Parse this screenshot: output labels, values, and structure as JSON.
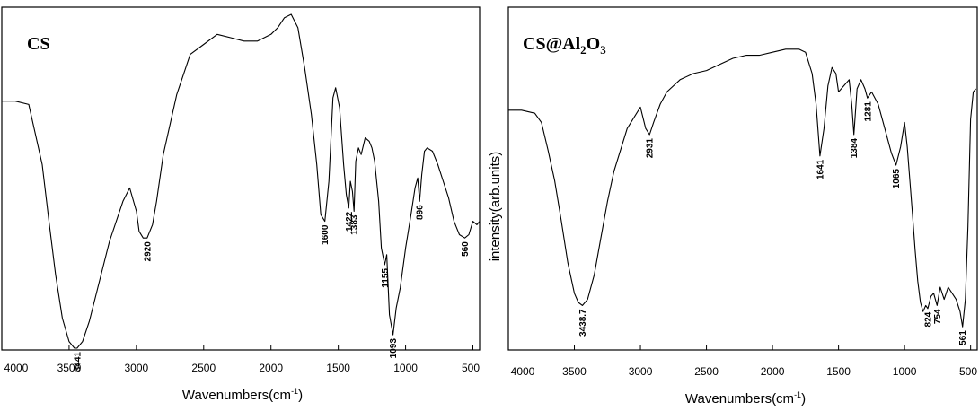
{
  "chart_data": [
    {
      "type": "line",
      "title": "CS",
      "xlabel": "Wavenumbers(cm",
      "xlabel_sup": "-1",
      "xlabel_end": ")",
      "ylabel": "",
      "xlim": [
        4000,
        450
      ],
      "ylim": [
        0,
        100
      ],
      "x_ticks": [
        4000,
        3500,
        3000,
        2500,
        2000,
        1500,
        1000,
        500
      ],
      "grid": false,
      "series": [
        {
          "x": [
            4000,
            3900,
            3800,
            3700,
            3650,
            3600,
            3550,
            3500,
            3460,
            3441,
            3400,
            3350,
            3300,
            3200,
            3100,
            3050,
            3000,
            2980,
            2950,
            2920,
            2880,
            2850,
            2800,
            2700,
            2600,
            2500,
            2400,
            2300,
            2200,
            2100,
            2000,
            1950,
            1900,
            1850,
            1800,
            1750,
            1700,
            1660,
            1630,
            1600,
            1570,
            1540,
            1520,
            1490,
            1460,
            1440,
            1422,
            1410,
            1395,
            1383,
            1370,
            1350,
            1330,
            1300,
            1270,
            1250,
            1230,
            1200,
            1180,
            1160,
            1155,
            1140,
            1120,
            1093,
            1070,
            1040,
            1000,
            960,
            930,
            910,
            896,
            880,
            860,
            840,
            800,
            760,
            720,
            680,
            640,
            600,
            560,
            530,
            500,
            470,
            450
          ],
          "y": [
            74,
            74,
            73,
            55,
            38,
            22,
            9,
            2,
            0,
            0,
            2,
            8,
            16,
            32,
            44,
            48,
            41,
            35,
            33,
            33,
            37,
            44,
            58,
            76,
            88,
            91,
            94,
            93,
            92,
            92,
            94,
            96,
            99,
            100,
            96,
            84,
            70,
            55,
            40,
            38,
            50,
            75,
            78,
            72,
            55,
            46,
            42,
            50,
            47,
            41,
            56,
            60,
            58,
            63,
            62,
            60,
            56,
            44,
            30,
            26,
            25,
            28,
            10,
            4,
            12,
            18,
            30,
            40,
            48,
            51,
            44,
            52,
            59,
            60,
            59,
            55,
            50,
            45,
            38,
            34,
            33,
            34,
            38,
            37,
            38
          ]
        }
      ],
      "peak_labels": [
        {
          "x": 3441,
          "text": "3441"
        },
        {
          "x": 2920,
          "text": "2920"
        },
        {
          "x": 1600,
          "text": "1600"
        },
        {
          "x": 1422,
          "text": "1422"
        },
        {
          "x": 1383,
          "text": "1383"
        },
        {
          "x": 1155,
          "text": "1155"
        },
        {
          "x": 1093,
          "text": "1093"
        },
        {
          "x": 896,
          "text": "896"
        },
        {
          "x": 560,
          "text": "560"
        }
      ]
    },
    {
      "type": "line",
      "title": "CS@Al",
      "title_sub1": "2",
      "title_mid": "O",
      "title_sub2": "3",
      "xlabel": "Wavenumbers(cm",
      "xlabel_sup": "-1",
      "xlabel_end": ")",
      "ylabel": "intensity(arb.units)",
      "xlim": [
        4000,
        450
      ],
      "ylim": [
        0,
        100
      ],
      "x_ticks": [
        4000,
        3500,
        3000,
        2500,
        2000,
        1500,
        1000,
        500
      ],
      "grid": false,
      "series": [
        {
          "x": [
            4000,
            3900,
            3800,
            3750,
            3700,
            3650,
            3600,
            3550,
            3500,
            3470,
            3438.7,
            3400,
            3350,
            3300,
            3250,
            3200,
            3100,
            3000,
            2960,
            2931,
            2900,
            2850,
            2800,
            2700,
            2600,
            2500,
            2400,
            2300,
            2200,
            2100,
            2000,
            1900,
            1800,
            1750,
            1700,
            1670,
            1641,
            1610,
            1580,
            1550,
            1520,
            1500,
            1460,
            1420,
            1400,
            1384,
            1360,
            1330,
            1300,
            1281,
            1250,
            1200,
            1150,
            1100,
            1065,
            1030,
            1000,
            980,
            960,
            940,
            920,
            900,
            880,
            860,
            840,
            824,
            800,
            780,
            754,
            730,
            700,
            670,
            640,
            610,
            580,
            561,
            540,
            520,
            500,
            480,
            460
          ],
          "y": [
            78,
            78,
            77,
            74,
            65,
            55,
            42,
            28,
            18,
            15,
            14,
            16,
            24,
            36,
            48,
            58,
            72,
            79,
            72,
            70,
            74,
            80,
            84,
            88,
            90,
            91,
            93,
            95,
            96,
            96,
            97,
            98,
            98,
            97,
            90,
            80,
            63,
            72,
            86,
            92,
            90,
            84,
            86,
            88,
            80,
            70,
            85,
            88,
            85,
            82,
            84,
            80,
            72,
            64,
            60,
            66,
            74,
            66,
            55,
            44,
            32,
            22,
            15,
            12,
            14,
            13,
            17,
            18,
            14,
            20,
            16,
            20,
            18,
            16,
            12,
            7,
            16,
            40,
            75,
            84,
            85
          ]
        }
      ],
      "peak_labels": [
        {
          "x": 3438.7,
          "text": "3438.7"
        },
        {
          "x": 2931,
          "text": "2931"
        },
        {
          "x": 1641,
          "text": "1641"
        },
        {
          "x": 1384,
          "text": "1384"
        },
        {
          "x": 1281,
          "text": "1281"
        },
        {
          "x": 1065,
          "text": "1065"
        },
        {
          "x": 824,
          "text": "824"
        },
        {
          "x": 754,
          "text": "754"
        },
        {
          "x": 561,
          "text": "561"
        }
      ]
    }
  ]
}
